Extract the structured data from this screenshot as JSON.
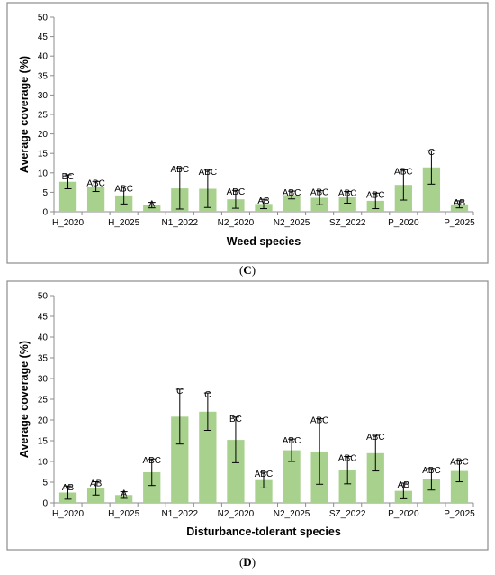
{
  "chart_data": [
    {
      "type": "bar",
      "caption": "(C)",
      "caption_parts": [
        "(",
        "C",
        ")"
      ],
      "xlabel": "Weed species",
      "ylabel": "Average coverage (%)",
      "ylim": [
        0,
        50
      ],
      "yticks": [
        0,
        5,
        10,
        15,
        20,
        25,
        30,
        35,
        40,
        45,
        50
      ],
      "grid": false,
      "categories": [
        "H_2020",
        "",
        "H_2025",
        "",
        "N1_2022",
        "",
        "N2_2020",
        "",
        "N2_2025",
        "",
        "SZ_2022",
        "",
        "P_2020",
        "",
        "P_2025"
      ],
      "values": [
        7.7,
        6.5,
        4.2,
        1.7,
        6.0,
        5.9,
        3.2,
        2.0,
        4.3,
        3.6,
        3.7,
        2.8,
        6.9,
        11.4,
        1.9
      ],
      "error": [
        1.8,
        1.3,
        2.2,
        0.7,
        5.3,
        4.8,
        2.3,
        1.2,
        1.0,
        1.8,
        1.5,
        2.0,
        3.9,
        4.3,
        0.9
      ],
      "letters": [
        "BC",
        "ABC",
        "ABC",
        "A",
        "ABC",
        "ABC",
        "ABC",
        "AB",
        "ABC",
        "ABC",
        "ABC",
        "ABC",
        "ABC",
        "C",
        "AB"
      ],
      "bar_color": "#a9d18e"
    },
    {
      "type": "bar",
      "caption": "(D)",
      "caption_parts": [
        "(",
        "D",
        ")"
      ],
      "xlabel": "Disturbance-tolerant species",
      "ylabel": "Average coverage (%)",
      "ylim": [
        0,
        50
      ],
      "yticks": [
        0,
        5,
        10,
        15,
        20,
        25,
        30,
        35,
        40,
        45,
        50
      ],
      "grid": false,
      "categories": [
        "H_2020",
        "",
        "H_2025",
        "",
        "N1_2022",
        "",
        "N2_2020",
        "",
        "N2_2025",
        "",
        "SZ_2022",
        "",
        "P_2020",
        "",
        "P_2025"
      ],
      "values": [
        2.5,
        3.5,
        1.9,
        7.4,
        20.8,
        22.0,
        15.2,
        5.5,
        12.7,
        12.4,
        7.9,
        12.0,
        2.9,
        5.7,
        7.7
      ],
      "error": [
        1.6,
        1.6,
        0.8,
        3.2,
        6.6,
        4.5,
        5.5,
        1.9,
        2.7,
        7.9,
        3.3,
        4.3,
        1.9,
        2.6,
        2.6
      ],
      "letters": [
        "AB",
        "AB",
        "A",
        "ABC",
        "C",
        "C",
        "BC",
        "ABC",
        "ABC",
        "ABC",
        "ABC",
        "ABC",
        "AB",
        "ABC",
        "ABC"
      ],
      "bar_color": "#a9d18e"
    }
  ]
}
